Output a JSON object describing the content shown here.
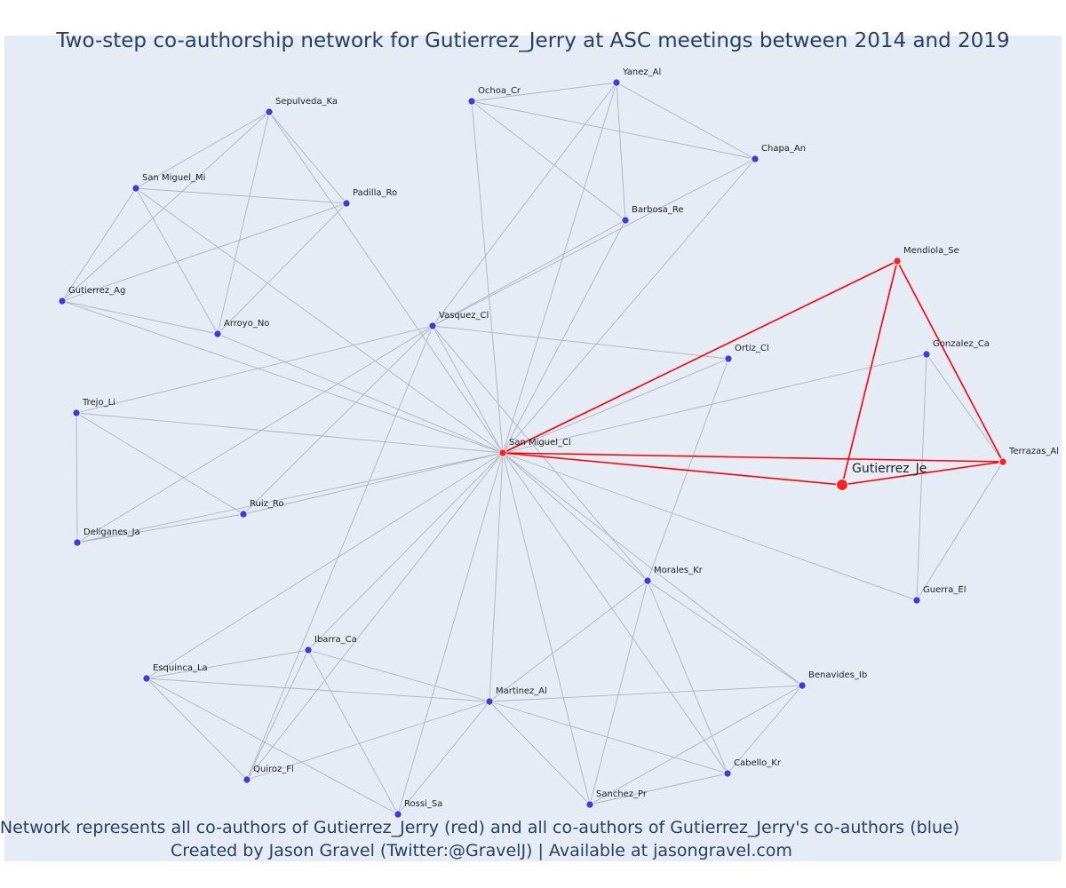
{
  "title": "Two-step co-authorship network for Gutierrez_Jerry at ASC meetings between 2014 and 2019",
  "footer": {
    "line1": "Network represents all co-authors of Gutierrez_Jerry (red) and all co-authors of Gutierrez_Jerry's co-authors (blue)",
    "line2": "Created by Jason Gravel (Twitter:@GravelJ) | Available at jasongravel.com"
  },
  "colors": {
    "plot_bg": "#e5ecf6",
    "blue_node": "#3b3be8",
    "red_node": "#ff2020",
    "grey_edge": "#b0b3bf",
    "red_edge": "#ff0000"
  },
  "chart_data": {
    "type": "network",
    "focal": "Gutierrez_Je",
    "nodes": [
      {
        "id": "Gutierrez_Je",
        "label": "Gutierrez_Je",
        "group": "focal"
      },
      {
        "id": "San Miguel_Cl",
        "label": "San Miguel_Cl",
        "group": "coauthor"
      },
      {
        "id": "Mendiola_Se",
        "label": "Mendiola_Se",
        "group": "coauthor"
      },
      {
        "id": "Terrazas_Al",
        "label": "Terrazas_Al",
        "group": "coauthor"
      },
      {
        "id": "Yanez_Al",
        "label": "Yanez_Al",
        "group": "second"
      },
      {
        "id": "Ochoa_Cr",
        "label": "Ochoa_Cr",
        "group": "second"
      },
      {
        "id": "Chapa_An",
        "label": "Chapa_An",
        "group": "second"
      },
      {
        "id": "Barbosa_Re",
        "label": "Barbosa_Re",
        "group": "second"
      },
      {
        "id": "Sepulveda_Ka",
        "label": "Sepulveda_Ka",
        "group": "second"
      },
      {
        "id": "San Miguel_Mi",
        "label": "San Miguel_Mi",
        "group": "second"
      },
      {
        "id": "Padilla_Ro",
        "label": "Padilla_Ro",
        "group": "second"
      },
      {
        "id": "Gutierrez_Ag",
        "label": "Gutierrez_Ag",
        "group": "second"
      },
      {
        "id": "Arroyo_No",
        "label": "Arroyo_No",
        "group": "second"
      },
      {
        "id": "Vasquez_Cl",
        "label": "Vasquez_Cl",
        "group": "second"
      },
      {
        "id": "Ortiz_Cl",
        "label": "Ortiz_Cl",
        "group": "second"
      },
      {
        "id": "Gonzalez_Ca",
        "label": "Gonzalez_Ca",
        "group": "second"
      },
      {
        "id": "Trejo_Li",
        "label": "Trejo_Li",
        "group": "second"
      },
      {
        "id": "Ruiz_Ro",
        "label": "Ruiz_Ro",
        "group": "second"
      },
      {
        "id": "Deliganes_Ja",
        "label": "Deliganes_Ja",
        "group": "second"
      },
      {
        "id": "Morales_Kr",
        "label": "Morales_Kr",
        "group": "second"
      },
      {
        "id": "Guerra_El",
        "label": "Guerra_El",
        "group": "second"
      },
      {
        "id": "Ibarra_Ca",
        "label": "Ibarra_Ca",
        "group": "second"
      },
      {
        "id": "Esquinca_La",
        "label": "Esquinca_La",
        "group": "second"
      },
      {
        "id": "Martinez_Al",
        "label": "Martinez_Al",
        "group": "second"
      },
      {
        "id": "Benavides_Ib",
        "label": "Benavides_Ib",
        "group": "second"
      },
      {
        "id": "Quiroz_Fl",
        "label": "Quiroz_Fl",
        "group": "second"
      },
      {
        "id": "Rossi_Sa",
        "label": "Rossi_Sa",
        "group": "second"
      },
      {
        "id": "Sanchez_Pr",
        "label": "Sanchez_Pr",
        "group": "second"
      },
      {
        "id": "Cabello_Kr",
        "label": "Cabello_Kr",
        "group": "second"
      }
    ],
    "edges": [
      [
        "Gutierrez_Je",
        "San Miguel_Cl"
      ],
      [
        "Gutierrez_Je",
        "Mendiola_Se"
      ],
      [
        "Gutierrez_Je",
        "Terrazas_Al"
      ],
      [
        "San Miguel_Cl",
        "Mendiola_Se"
      ],
      [
        "San Miguel_Cl",
        "Terrazas_Al"
      ],
      [
        "Mendiola_Se",
        "Terrazas_Al"
      ],
      [
        "San Miguel_Cl",
        "Ochoa_Cr"
      ],
      [
        "San Miguel_Cl",
        "Yanez_Al"
      ],
      [
        "San Miguel_Cl",
        "Chapa_An"
      ],
      [
        "San Miguel_Cl",
        "Barbosa_Re"
      ],
      [
        "San Miguel_Cl",
        "Sepulveda_Ka"
      ],
      [
        "San Miguel_Cl",
        "San Miguel_Mi"
      ],
      [
        "San Miguel_Cl",
        "Gutierrez_Ag"
      ],
      [
        "San Miguel_Cl",
        "Arroyo_No"
      ],
      [
        "San Miguel_Cl",
        "Vasquez_Cl"
      ],
      [
        "San Miguel_Cl",
        "Ortiz_Cl"
      ],
      [
        "San Miguel_Cl",
        "Gonzalez_Ca"
      ],
      [
        "San Miguel_Cl",
        "Trejo_Li"
      ],
      [
        "San Miguel_Cl",
        "Ruiz_Ro"
      ],
      [
        "San Miguel_Cl",
        "Deliganes_Ja"
      ],
      [
        "San Miguel_Cl",
        "Morales_Kr"
      ],
      [
        "San Miguel_Cl",
        "Guerra_El"
      ],
      [
        "San Miguel_Cl",
        "Esquinca_La"
      ],
      [
        "San Miguel_Cl",
        "Martinez_Al"
      ],
      [
        "San Miguel_Cl",
        "Benavides_Ib"
      ],
      [
        "San Miguel_Cl",
        "Quiroz_Fl"
      ],
      [
        "San Miguel_Cl",
        "Rossi_Sa"
      ],
      [
        "San Miguel_Cl",
        "Sanchez_Pr"
      ],
      [
        "San Miguel_Cl",
        "Cabello_Kr"
      ],
      [
        "San Miguel_Cl",
        "Ibarra_Ca"
      ],
      [
        "Ochoa_Cr",
        "Yanez_Al"
      ],
      [
        "Ochoa_Cr",
        "Chapa_An"
      ],
      [
        "Ochoa_Cr",
        "Barbosa_Re"
      ],
      [
        "Yanez_Al",
        "Chapa_An"
      ],
      [
        "Yanez_Al",
        "Barbosa_Re"
      ],
      [
        "Yanez_Al",
        "Vasquez_Cl"
      ],
      [
        "Chapa_An",
        "Vasquez_Cl"
      ],
      [
        "Barbosa_Re",
        "Vasquez_Cl"
      ],
      [
        "Sepulveda_Ka",
        "San Miguel_Mi"
      ],
      [
        "Sepulveda_Ka",
        "Padilla_Ro"
      ],
      [
        "Sepulveda_Ka",
        "Gutierrez_Ag"
      ],
      [
        "Sepulveda_Ka",
        "Arroyo_No"
      ],
      [
        "San Miguel_Mi",
        "Padilla_Ro"
      ],
      [
        "San Miguel_Mi",
        "Gutierrez_Ag"
      ],
      [
        "San Miguel_Mi",
        "Arroyo_No"
      ],
      [
        "Padilla_Ro",
        "Gutierrez_Ag"
      ],
      [
        "Padilla_Ro",
        "Arroyo_No"
      ],
      [
        "Gutierrez_Ag",
        "Arroyo_No"
      ],
      [
        "Vasquez_Cl",
        "Ortiz_Cl"
      ],
      [
        "Vasquez_Cl",
        "Trejo_Li"
      ],
      [
        "Vasquez_Cl",
        "Ruiz_Ro"
      ],
      [
        "Vasquez_Cl",
        "Deliganes_Ja"
      ],
      [
        "Vasquez_Cl",
        "Morales_Kr"
      ],
      [
        "Vasquez_Cl",
        "Quiroz_Fl"
      ],
      [
        "Ortiz_Cl",
        "Morales_Kr"
      ],
      [
        "Trejo_Li",
        "Ruiz_Ro"
      ],
      [
        "Trejo_Li",
        "Deliganes_Ja"
      ],
      [
        "Ruiz_Ro",
        "Deliganes_Ja"
      ],
      [
        "Gonzalez_Ca",
        "Terrazas_Al"
      ],
      [
        "Gonzalez_Ca",
        "Guerra_El"
      ],
      [
        "Terrazas_Al",
        "Guerra_El"
      ],
      [
        "Morales_Kr",
        "Martinez_Al"
      ],
      [
        "Morales_Kr",
        "Benavides_Ib"
      ],
      [
        "Morales_Kr",
        "Sanchez_Pr"
      ],
      [
        "Morales_Kr",
        "Cabello_Kr"
      ],
      [
        "Ibarra_Ca",
        "Esquinca_La"
      ],
      [
        "Ibarra_Ca",
        "Martinez_Al"
      ],
      [
        "Ibarra_Ca",
        "Quiroz_Fl"
      ],
      [
        "Ibarra_Ca",
        "Rossi_Sa"
      ],
      [
        "Esquinca_La",
        "Martinez_Al"
      ],
      [
        "Esquinca_La",
        "Quiroz_Fl"
      ],
      [
        "Esquinca_La",
        "Rossi_Sa"
      ],
      [
        "Martinez_Al",
        "Benavides_Ib"
      ],
      [
        "Martinez_Al",
        "Quiroz_Fl"
      ],
      [
        "Martinez_Al",
        "Rossi_Sa"
      ],
      [
        "Martinez_Al",
        "Sanchez_Pr"
      ],
      [
        "Martinez_Al",
        "Cabello_Kr"
      ],
      [
        "Benavides_Ib",
        "Sanchez_Pr"
      ],
      [
        "Benavides_Ib",
        "Cabello_Kr"
      ],
      [
        "Sanchez_Pr",
        "Cabello_Kr"
      ]
    ]
  }
}
